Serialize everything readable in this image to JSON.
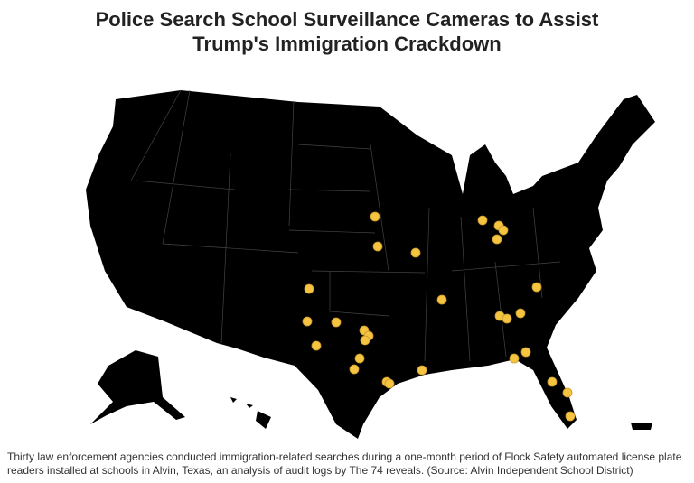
{
  "header": {
    "title": "Police Search School Surveillance Cameras to Assist Trump's Immigration Crackdown"
  },
  "caption": "Thirty law enforcement agencies conducted immigration-related searches during a one-month period of Flock Safety automated license plate readers installed at schools in Alvin, Texas, an analysis of audit logs by The 74 reveals. (Source: Alvin Independent School District)"
}
